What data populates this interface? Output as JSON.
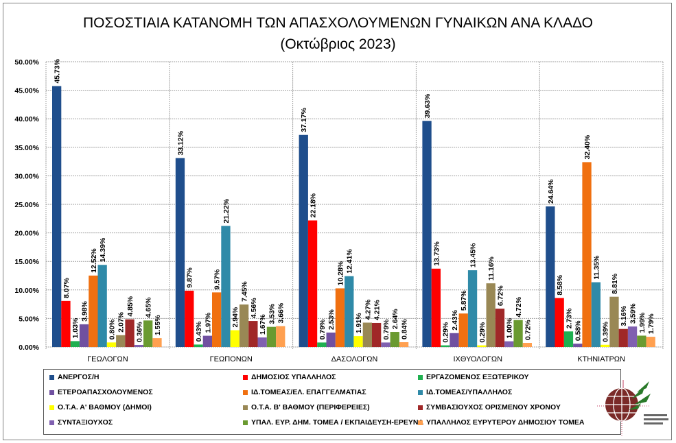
{
  "title": {
    "line1": "ΠΟΣΟΣΤΙΑΙΑ ΚΑΤΑΝΟΜΗ ΤΩΝ ΑΠΑΣΧΟΛΟΥΜΕΝΩΝ ΓΥΝΑΙΚΩΝ ΑΝΑ ΚΛΑΔΟ",
    "line2": "(Οκτώβριος 2023)"
  },
  "chart_data": {
    "type": "bar",
    "title": "ΠΟΣΟΣΤΙΑΙΑ ΚΑΤΑΝΟΜΗ ΤΩΝ ΑΠΑΣΧΟΛΟΥΜΕΝΩΝ ΓΥΝΑΙΚΩΝ ΑΝΑ ΚΛΑΔΟ (Οκτώβριος 2023)",
    "xlabel": "",
    "ylabel": "",
    "ylim": [
      0,
      50
    ],
    "yticks": [
      "0.00%",
      "5.00%",
      "10.00%",
      "15.00%",
      "20.00%",
      "25.00%",
      "30.00%",
      "35.00%",
      "40.00%",
      "45.00%",
      "50.00%"
    ],
    "grid": true,
    "legend_position": "bottom",
    "categories": [
      "ΓΕΩΛΟΓΩΝ",
      "ΓΕΩΠΟΝΩΝ",
      "ΔΑΣΟΛΟΓΩΝ",
      "ΙΧΘΥΟΛΟΓΩΝ",
      "ΚΤΗΝΙΑΤΡΩΝ"
    ],
    "series": [
      {
        "name": "ΑΝΕΡΓΟΣ/Η",
        "color": "#1f4e8c",
        "values": [
          45.73,
          33.12,
          37.17,
          39.63,
          24.64
        ],
        "labels": [
          "45.73%",
          "33.12%",
          "37.17%",
          "39.63%",
          "24.64%"
        ]
      },
      {
        "name": "ΔΗΜΟΣΙΟΣ ΥΠΑΛΛΗΛΟΣ",
        "color": "#ff0000",
        "values": [
          8.07,
          9.87,
          22.18,
          13.73,
          8.58
        ],
        "labels": [
          "8.07%",
          "9.87%",
          "22.18%",
          "13.73%",
          "8.58%"
        ]
      },
      {
        "name": "ΕΡΓΑΖΟΜΕΝΟΣ ΕΞΩΤΕΡΙΚΟΥ",
        "color": "#1fb050",
        "values": [
          1.03,
          0.43,
          0.79,
          0.29,
          2.73
        ],
        "labels": [
          "1.03%",
          "0.43%",
          "0.79%",
          "0.29%",
          "2.73%"
        ]
      },
      {
        "name": "ΕΤΕΡΟΑΠΑΣΧΟΛΟΥΜΕΝΟΣ",
        "color": "#7050a0",
        "values": [
          3.98,
          1.97,
          2.53,
          2.43,
          0.58
        ],
        "labels": [
          "3.98%",
          "1.97%",
          "2.53%",
          "2.43%",
          "0.58%"
        ]
      },
      {
        "name": "ΙΔ.ΤΟΜΕΑΣ/ΕΛ.  ΕΠΑΓΓΕΛΜΑΤΙΑΣ",
        "color": "#f07010",
        "values": [
          12.52,
          9.57,
          10.28,
          5.87,
          32.4
        ],
        "labels": [
          "12.52%",
          "9.57%",
          "10.28%",
          "5.87%",
          "32.40%"
        ]
      },
      {
        "name": "ΙΔ.ΤΟΜΕΑΣ/ΥΠΑΛΛΗΛΟΣ",
        "color": "#2f8aa8",
        "values": [
          14.39,
          21.22,
          12.41,
          13.45,
          11.35
        ],
        "labels": [
          "14.39%",
          "21.22%",
          "12.41%",
          "13.45%",
          "11.35%"
        ]
      },
      {
        "name": "Ο.Τ.Α. Α' ΒΑΘΜΟΥ (ΔΗΜΟΙ)",
        "color": "#ffff00",
        "values": [
          0.8,
          2.94,
          1.91,
          0.29,
          0.39
        ],
        "labels": [
          "0.80%",
          "2.94%",
          "1.91%",
          "0.29%",
          "0.39%"
        ]
      },
      {
        "name": "Ο.Τ.Α. Β' ΒΑΘΜΟΥ (ΠΕΡΙΦΕΡΕΙΕΣ)",
        "color": "#998855",
        "values": [
          2.07,
          7.45,
          4.27,
          11.16,
          8.81
        ],
        "labels": [
          "2.07%",
          "7.45%",
          "4.27%",
          "11.16%",
          "8.81%"
        ]
      },
      {
        "name": "ΣΥΜΒΑΣΙΟΥΧΟΣ  ΟΡΙΣΜΕΝΟΥ ΧΡΟΝΟΥ",
        "color": "#a02828",
        "values": [
          4.85,
          4.56,
          4.21,
          6.72,
          3.16
        ],
        "labels": [
          "4.85%",
          "4.56%",
          "4.21%",
          "6.72%",
          "3.16%"
        ]
      },
      {
        "name": "ΣΥΝΤΑΞΙΟΥΧΟΣ",
        "color": "#8060b0",
        "values": [
          0.36,
          1.67,
          0.79,
          1.0,
          3.59
        ],
        "labels": [
          "0.36%",
          "1.67%",
          "0.79%",
          "1.00%",
          "3.59%"
        ]
      },
      {
        "name": "ΥΠΑΛ. ΕΥΡ. ΔΗΜ. ΤΟΜΕΑ  / ΕΚΠΑΙΔΕΥΣΗ-ΕΡΕΥΝΑ",
        "color": "#6a9a30",
        "values": [
          4.65,
          3.53,
          2.64,
          4.72,
          1.99
        ],
        "labels": [
          "4.65%",
          "3.53%",
          "2.64%",
          "4.72%",
          "1.99%"
        ]
      },
      {
        "name": "ΥΠΑΛΛΗΛΟΣ ΕΥΡΥΤΕΡΟΥ ΔΗΜΟΣΙΟΥ ΤΟΜΕΑ",
        "color": "#ffa050",
        "values": [
          1.55,
          3.66,
          0.84,
          0.72,
          1.79
        ],
        "labels": [
          "1.55%",
          "3.66%",
          "0.84%",
          "0.72%",
          "1.79%"
        ]
      }
    ]
  },
  "legend": {
    "items": [
      {
        "label": "ΑΝΕΡΓΟΣ/Η",
        "color": "#1f4e8c"
      },
      {
        "label": "ΔΗΜΟΣΙΟΣ ΥΠΑΛΛΗΛΟΣ",
        "color": "#ff0000"
      },
      {
        "label": "ΕΡΓΑΖΟΜΕΝΟΣ  ΕΞΩΤΕΡΙΚΟΥ",
        "color": "#1fb050"
      },
      {
        "label": "ΕΤΕΡΟΑΠΑΣΧΟΛΟΥΜΕΝΟΣ",
        "color": "#7050a0"
      },
      {
        "label": "ΙΔ.ΤΟΜΕΑΣ/ΕΛ.  ΕΠΑΓΓΕΛΜΑΤΙΑΣ",
        "color": "#f07010"
      },
      {
        "label": "ΙΔ.ΤΟΜΕΑΣ/ΥΠΑΛΛΗΛΟΣ",
        "color": "#2f8aa8"
      },
      {
        "label": "Ο.Τ.Α. Α' ΒΑΘΜΟΥ (ΔΗΜΟΙ)",
        "color": "#ffff00"
      },
      {
        "label": "Ο.Τ.Α. Β' ΒΑΘΜΟΥ (ΠΕΡΙΦΕΡΕΙΕΣ)",
        "color": "#998855"
      },
      {
        "label": "ΣΥΜΒΑΣΙΟΥΧΟΣ  ΟΡΙΣΜΕΝΟΥ ΧΡΟΝΟΥ",
        "color": "#a02828"
      },
      {
        "label": "ΣΥΝΤΑΞΙΟΥΧΟΣ",
        "color": "#8060b0"
      },
      {
        "label": "ΥΠΑΛ. ΕΥΡ. ΔΗΜ. ΤΟΜΕΑ  / ΕΚΠΑΙΔΕΥΣΗ-ΕΡΕΥΝΑ",
        "color": "#6a9a30"
      },
      {
        "label": "ΥΠΑΛΛΗΛΟΣ ΕΥΡΥΤΕΡΟΥ ΔΗΜΟΣΙΟΥ ΤΟΜΕΑ",
        "color": "#ffa050"
      }
    ]
  },
  "logo": {
    "icon": "globe-leaf-logo-icon"
  }
}
